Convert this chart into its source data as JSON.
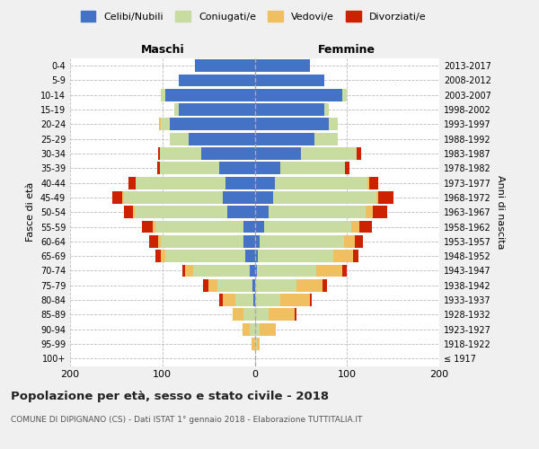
{
  "age_groups": [
    "100+",
    "95-99",
    "90-94",
    "85-89",
    "80-84",
    "75-79",
    "70-74",
    "65-69",
    "60-64",
    "55-59",
    "50-54",
    "45-49",
    "40-44",
    "35-39",
    "30-34",
    "25-29",
    "20-24",
    "15-19",
    "10-14",
    "5-9",
    "0-4"
  ],
  "birth_years": [
    "≤ 1917",
    "1918-1922",
    "1923-1927",
    "1928-1932",
    "1933-1937",
    "1938-1942",
    "1943-1947",
    "1948-1952",
    "1953-1957",
    "1958-1962",
    "1963-1967",
    "1968-1972",
    "1973-1977",
    "1978-1982",
    "1983-1987",
    "1988-1992",
    "1993-1997",
    "1998-2002",
    "2003-2007",
    "2008-2012",
    "2013-2017"
  ],
  "colors": {
    "celibe": "#4472c4",
    "coniugato": "#c8dba0",
    "vedovo": "#f0c060",
    "divorziato": "#cc2200"
  },
  "maschi": {
    "celibe": [
      0,
      0,
      0,
      0,
      1,
      2,
      5,
      10,
      12,
      12,
      30,
      35,
      32,
      38,
      58,
      72,
      92,
      82,
      97,
      82,
      65
    ],
    "coniugato": [
      0,
      0,
      5,
      12,
      20,
      38,
      62,
      87,
      90,
      96,
      100,
      107,
      97,
      65,
      45,
      20,
      10,
      5,
      5,
      0,
      0
    ],
    "vedovo": [
      0,
      3,
      8,
      12,
      14,
      10,
      8,
      5,
      3,
      2,
      2,
      2,
      0,
      0,
      0,
      0,
      2,
      0,
      0,
      0,
      0
    ],
    "divorziato": [
      0,
      0,
      0,
      0,
      3,
      6,
      3,
      6,
      9,
      12,
      10,
      10,
      8,
      3,
      2,
      0,
      0,
      0,
      0,
      0,
      0
    ]
  },
  "femmine": {
    "nubile": [
      0,
      0,
      0,
      0,
      0,
      0,
      2,
      3,
      5,
      10,
      15,
      20,
      22,
      28,
      50,
      65,
      80,
      75,
      95,
      75,
      60
    ],
    "coniugata": [
      0,
      2,
      5,
      15,
      28,
      45,
      65,
      82,
      92,
      95,
      105,
      112,
      100,
      70,
      60,
      25,
      10,
      5,
      5,
      0,
      0
    ],
    "vedova": [
      0,
      3,
      18,
      28,
      32,
      28,
      28,
      22,
      12,
      8,
      8,
      2,
      2,
      0,
      0,
      0,
      0,
      0,
      0,
      0,
      0
    ],
    "divorziata": [
      0,
      0,
      0,
      2,
      2,
      5,
      5,
      5,
      8,
      14,
      16,
      16,
      10,
      5,
      5,
      0,
      0,
      0,
      0,
      0,
      0
    ]
  },
  "title": "Popolazione per età, sesso e stato civile - 2018",
  "subtitle": "COMUNE DI DIPIGNANO (CS) - Dati ISTAT 1° gennaio 2018 - Elaborazione TUTTITALIA.IT",
  "xlabel_left": "Maschi",
  "xlabel_right": "Femmine",
  "ylabel_left": "Fasce di età",
  "ylabel_right": "Anni di nascita",
  "xlim": 200,
  "legend_labels": [
    "Celibi/Nubili",
    "Coniugati/e",
    "Vedovi/e",
    "Divorziati/e"
  ],
  "background_color": "#f0f0f0",
  "plot_bg": "#ffffff"
}
